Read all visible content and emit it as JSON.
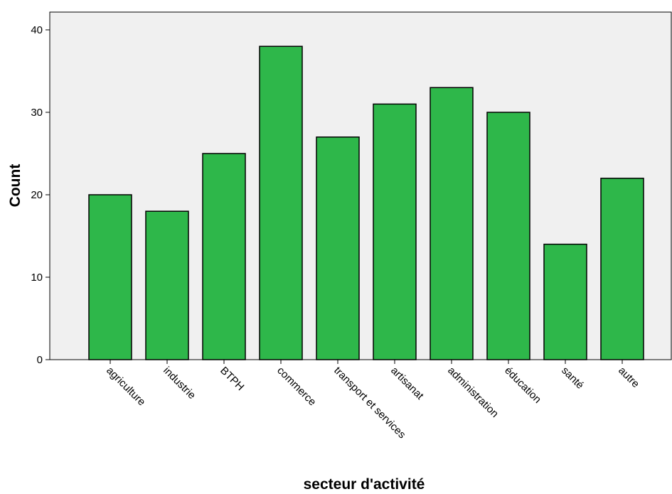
{
  "chart_data": {
    "type": "bar",
    "categories": [
      "agriculture",
      "industrie",
      "BTPH",
      "commerce",
      "transport et services",
      "artisanat",
      "administration",
      "éducation",
      "santé",
      "autre"
    ],
    "values": [
      20,
      18,
      25,
      38,
      27,
      31,
      33,
      30,
      14,
      22
    ],
    "xlabel": "secteur d'activité",
    "ylabel": "Count",
    "ylim": [
      0,
      40
    ],
    "yticks": [
      0,
      10,
      20,
      30,
      40
    ],
    "grid": false,
    "colors": {
      "bar_fill": "#2eb74a",
      "bar_stroke": "#000000",
      "plot_background": "#f0f0f0"
    }
  }
}
